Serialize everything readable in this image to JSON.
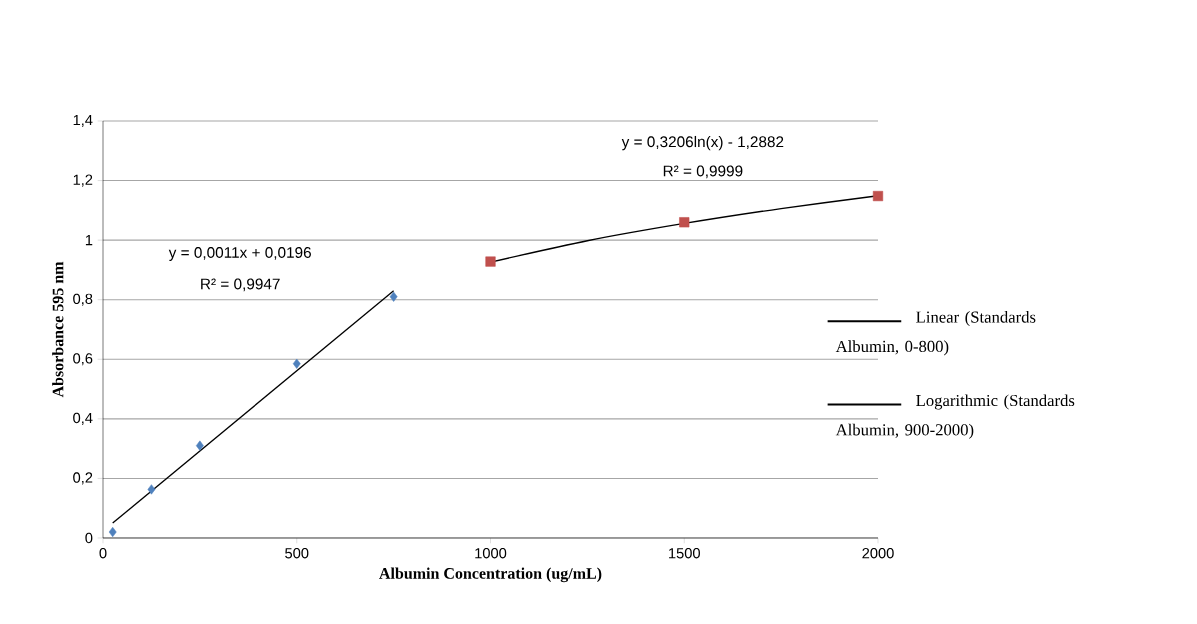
{
  "chart_data": {
    "type": "scatter",
    "xlabel": "Albumin Concentration (ug/mL)",
    "ylabel": "Absorbance 595 nm",
    "xlim": [
      0,
      2000
    ],
    "ylim": [
      0,
      1.4
    ],
    "xticks": [
      0,
      500,
      1000,
      1500,
      2000
    ],
    "yticks": [
      0,
      {
        "value": 0.2,
        "label": "0,2"
      },
      {
        "value": 0.4,
        "label": "0,4"
      },
      {
        "value": 0.6,
        "label": "0,6"
      },
      {
        "value": 0.8,
        "label": "0,8"
      },
      1,
      {
        "value": 1.2,
        "label": "1,2"
      },
      {
        "value": 1.4,
        "label": "1,4"
      }
    ],
    "grid": "y",
    "legend": "right",
    "series": [
      {
        "marker": "diamond",
        "color": "#4f81bd",
        "x": [
          25,
          125,
          250,
          500,
          750
        ],
        "values": [
          0.02,
          0.163,
          0.31,
          0.585,
          0.81
        ]
      },
      {
        "marker": "square",
        "color": "#c0504d",
        "x": [
          1000,
          1500,
          2000
        ],
        "values": [
          0.928,
          1.06,
          1.148
        ]
      },
      {
        "type": "line",
        "marker": "none",
        "name": "Linear (Standards Albumin, 0-800)",
        "color": "#000000",
        "x": [
          25,
          750
        ],
        "values": [
          0.05,
          0.83
        ]
      },
      {
        "type": "line",
        "marker": "none",
        "name": "Logarithmic (Standards Albumin, 900-2000)",
        "color": "#000000",
        "x": [
          1000,
          1250,
          1500,
          1750,
          2000
        ],
        "values": [
          0.926,
          0.998,
          1.056,
          1.106,
          1.149
        ]
      }
    ],
    "annotations": [
      "y = 0,0011x + 0,0196",
      "R² = 0,9947",
      "y = 0,3206ln(x) - 1,2882",
      "R² = 0,9999"
    ]
  }
}
